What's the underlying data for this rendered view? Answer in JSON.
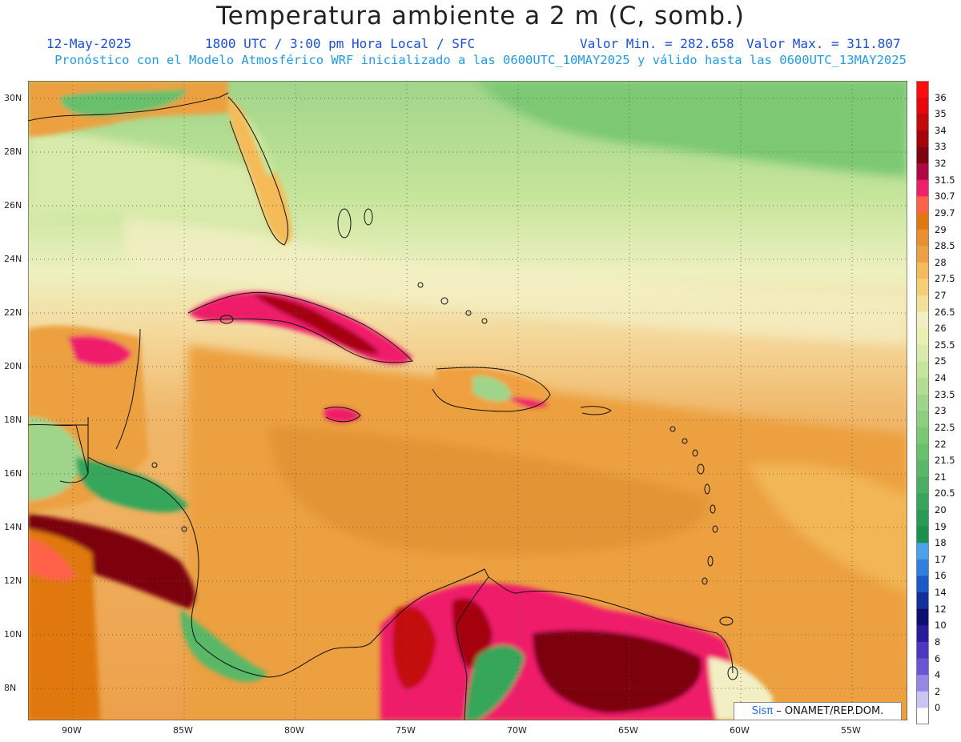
{
  "header": {
    "title": "Temperatura ambiente a 2 m (C, somb.)",
    "date": "12-May-2025",
    "time": "1800 UTC / 3:00 pm Hora Local / SFC",
    "min_label": "Valor Min. = 282.658",
    "max_label": "Valor Max. = 311.807",
    "forecast_info": "Pronóstico con el Modelo Atmosférico WRF inicializado a las 0600UTC_10MAY2025 y válido hasta las  0600UTC_13MAY2025"
  },
  "axes": {
    "lat_labels": [
      "30N",
      "28N",
      "26N",
      "24N",
      "22N",
      "20N",
      "18N",
      "16N",
      "14N",
      "12N",
      "10N",
      "8N"
    ],
    "lon_labels": [
      "90W",
      "85W",
      "80W",
      "75W",
      "70W",
      "65W",
      "60W",
      "55W"
    ]
  },
  "colorbar": {
    "labels": [
      "36",
      "35",
      "34",
      "33",
      "32",
      "31.5",
      "30.7",
      "29.7",
      "29",
      "28.5",
      "28",
      "27.5",
      "27",
      "26.5",
      "26",
      "25.5",
      "25",
      "24",
      "23.5",
      "23",
      "22.5",
      "22",
      "21.5",
      "21",
      "20.5",
      "20",
      "19",
      "18",
      "17",
      "16",
      "14",
      "12",
      "10",
      "8",
      "6",
      "4",
      "2",
      "0"
    ],
    "colors": [
      "#ff0d0d",
      "#e8070d",
      "#c40a0a",
      "#a5050a",
      "#7d0410",
      "#b00845",
      "#ef1f6b",
      "#ff6147",
      "#e0780d",
      "#ea8f2f",
      "#eca041",
      "#f5bb59",
      "#f6ce74",
      "#f5e09a",
      "#f3efc4",
      "#e9f0b0",
      "#d8ebaa",
      "#c5e59a",
      "#b4dd94",
      "#9fd58a",
      "#8ccf7d",
      "#7bc873",
      "#69c06c",
      "#58b867",
      "#48af60",
      "#36a65a",
      "#279c55",
      "#1b9150",
      "#4aa2ec",
      "#2f7fe0",
      "#1d58c8",
      "#14309d",
      "#0e0d70",
      "#2a1aa0",
      "#4d36c1",
      "#6b55d6",
      "#9686e6",
      "#c8c4f4",
      "#ffffff"
    ]
  },
  "credit": {
    "logo": "Sisπ",
    "text": " – ONAMET/REP.DOM."
  }
}
